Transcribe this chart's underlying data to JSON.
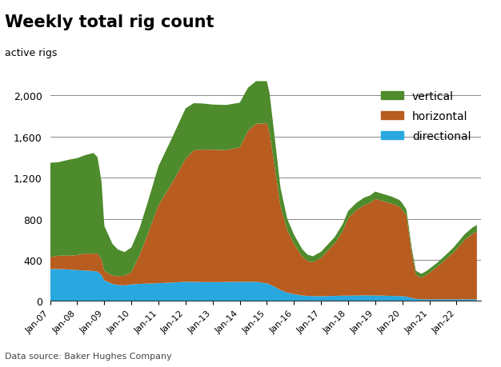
{
  "title": "Weekly total rig count",
  "active_rigs_label": "active rigs",
  "source": "Data source: Baker Hughes Company",
  "colors": {
    "vertical": "#4E8B2C",
    "horizontal": "#B85C20",
    "directional": "#29A8E0"
  },
  "x_tick_labels": [
    "Jan-07",
    "Jan-08",
    "Jan-09",
    "Jan-10",
    "Jan-11",
    "Jan-12",
    "Jan-13",
    "Jan-14",
    "Jan-15",
    "Jan-16",
    "Jan-17",
    "Jan-18",
    "Jan-19",
    "Jan-20",
    "Jan-21",
    "Jan-22"
  ],
  "yticks": [
    0,
    400,
    800,
    1200,
    1600,
    2000
  ],
  "ylim": [
    0,
    2150
  ],
  "key_points": [
    [
      2007.0,
      310,
      115,
      920
    ],
    [
      2007.3,
      310,
      130,
      910
    ],
    [
      2007.7,
      305,
      135,
      935
    ],
    [
      2008.0,
      300,
      145,
      945
    ],
    [
      2008.3,
      295,
      165,
      960
    ],
    [
      2008.6,
      290,
      170,
      980
    ],
    [
      2008.75,
      285,
      175,
      940
    ],
    [
      2008.9,
      250,
      155,
      750
    ],
    [
      2009.0,
      200,
      90,
      440
    ],
    [
      2009.3,
      165,
      80,
      310
    ],
    [
      2009.5,
      155,
      85,
      260
    ],
    [
      2009.75,
      150,
      95,
      230
    ],
    [
      2010.0,
      160,
      120,
      240
    ],
    [
      2010.3,
      165,
      280,
      260
    ],
    [
      2010.6,
      168,
      480,
      310
    ],
    [
      2011.0,
      172,
      760,
      380
    ],
    [
      2011.5,
      178,
      970,
      440
    ],
    [
      2012.0,
      185,
      1200,
      490
    ],
    [
      2012.3,
      185,
      1280,
      460
    ],
    [
      2012.6,
      183,
      1290,
      450
    ],
    [
      2013.0,
      182,
      1290,
      440
    ],
    [
      2013.5,
      183,
      1285,
      440
    ],
    [
      2014.0,
      185,
      1310,
      435
    ],
    [
      2014.3,
      185,
      1470,
      420
    ],
    [
      2014.6,
      185,
      1540,
      415
    ],
    [
      2015.0,
      170,
      1560,
      410
    ],
    [
      2015.1,
      160,
      1480,
      380
    ],
    [
      2015.3,
      135,
      1150,
      280
    ],
    [
      2015.5,
      105,
      820,
      180
    ],
    [
      2015.75,
      80,
      610,
      110
    ],
    [
      2016.0,
      65,
      490,
      90
    ],
    [
      2016.3,
      52,
      380,
      72
    ],
    [
      2016.5,
      48,
      340,
      62
    ],
    [
      2016.7,
      46,
      330,
      58
    ],
    [
      2017.0,
      45,
      375,
      58
    ],
    [
      2017.5,
      48,
      510,
      62
    ],
    [
      2017.8,
      50,
      630,
      68
    ],
    [
      2018.0,
      50,
      755,
      70
    ],
    [
      2018.3,
      52,
      830,
      72
    ],
    [
      2018.6,
      53,
      880,
      74
    ],
    [
      2018.8,
      52,
      900,
      73
    ],
    [
      2019.0,
      52,
      940,
      72
    ],
    [
      2019.3,
      50,
      920,
      70
    ],
    [
      2019.6,
      48,
      900,
      68
    ],
    [
      2019.9,
      46,
      870,
      65
    ],
    [
      2020.0,
      45,
      840,
      64
    ],
    [
      2020.15,
      40,
      790,
      58
    ],
    [
      2020.35,
      28,
      430,
      48
    ],
    [
      2020.5,
      18,
      235,
      40
    ],
    [
      2020.7,
      15,
      210,
      38
    ],
    [
      2020.9,
      14,
      240,
      38
    ],
    [
      2021.0,
      14,
      260,
      38
    ],
    [
      2021.3,
      14,
      320,
      40
    ],
    [
      2021.6,
      14,
      390,
      42
    ],
    [
      2021.9,
      14,
      460,
      48
    ],
    [
      2022.0,
      14,
      490,
      50
    ],
    [
      2022.3,
      14,
      580,
      55
    ],
    [
      2022.6,
      14,
      640,
      62
    ],
    [
      2022.75,
      14,
      660,
      65
    ]
  ]
}
